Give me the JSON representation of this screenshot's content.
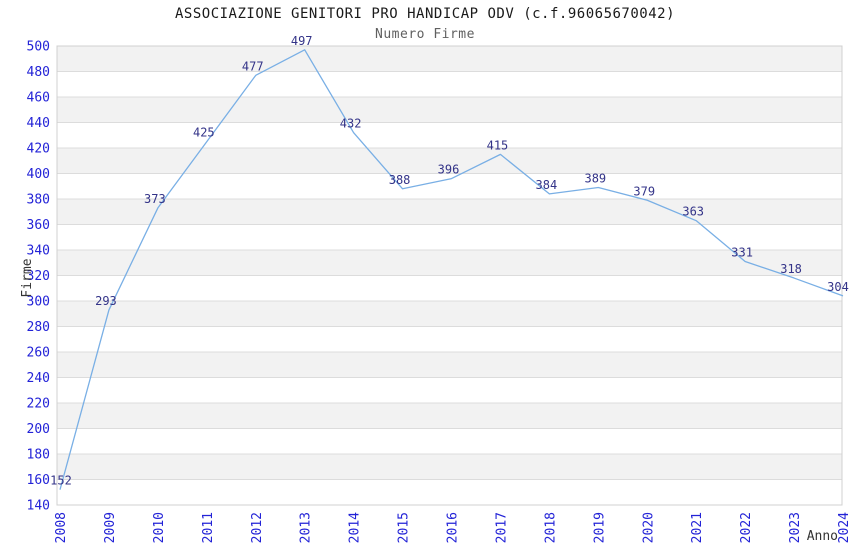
{
  "chart_data": {
    "type": "line",
    "title": "ASSOCIAZIONE GENITORI PRO HANDICAP ODV (c.f.96065670042)",
    "subtitle": "Numero Firme",
    "xlabel": "Anno",
    "ylabel": "Firme",
    "categories": [
      2008,
      2009,
      2010,
      2011,
      2012,
      2013,
      2014,
      2015,
      2016,
      2017,
      2018,
      2019,
      2020,
      2021,
      2022,
      2023,
      2024
    ],
    "values": [
      152,
      293,
      373,
      425,
      477,
      497,
      432,
      388,
      396,
      415,
      384,
      389,
      379,
      363,
      331,
      318,
      304
    ],
    "ylim": [
      140,
      500
    ],
    "ytick_step": 20,
    "grid": true,
    "legend": false,
    "data_labels_visible": true,
    "banded_background": true,
    "colors": {
      "line": "#79afe5",
      "tick_label": "#2323d7",
      "data_label": "#333388",
      "band": "#f2f2f2",
      "gridline": "#dcdcdc",
      "plot_border": "#d0d0d0",
      "title": "#1a1a1a",
      "subtitle": "#606060",
      "axis_title": "#333333",
      "background": "#ffffff"
    }
  }
}
